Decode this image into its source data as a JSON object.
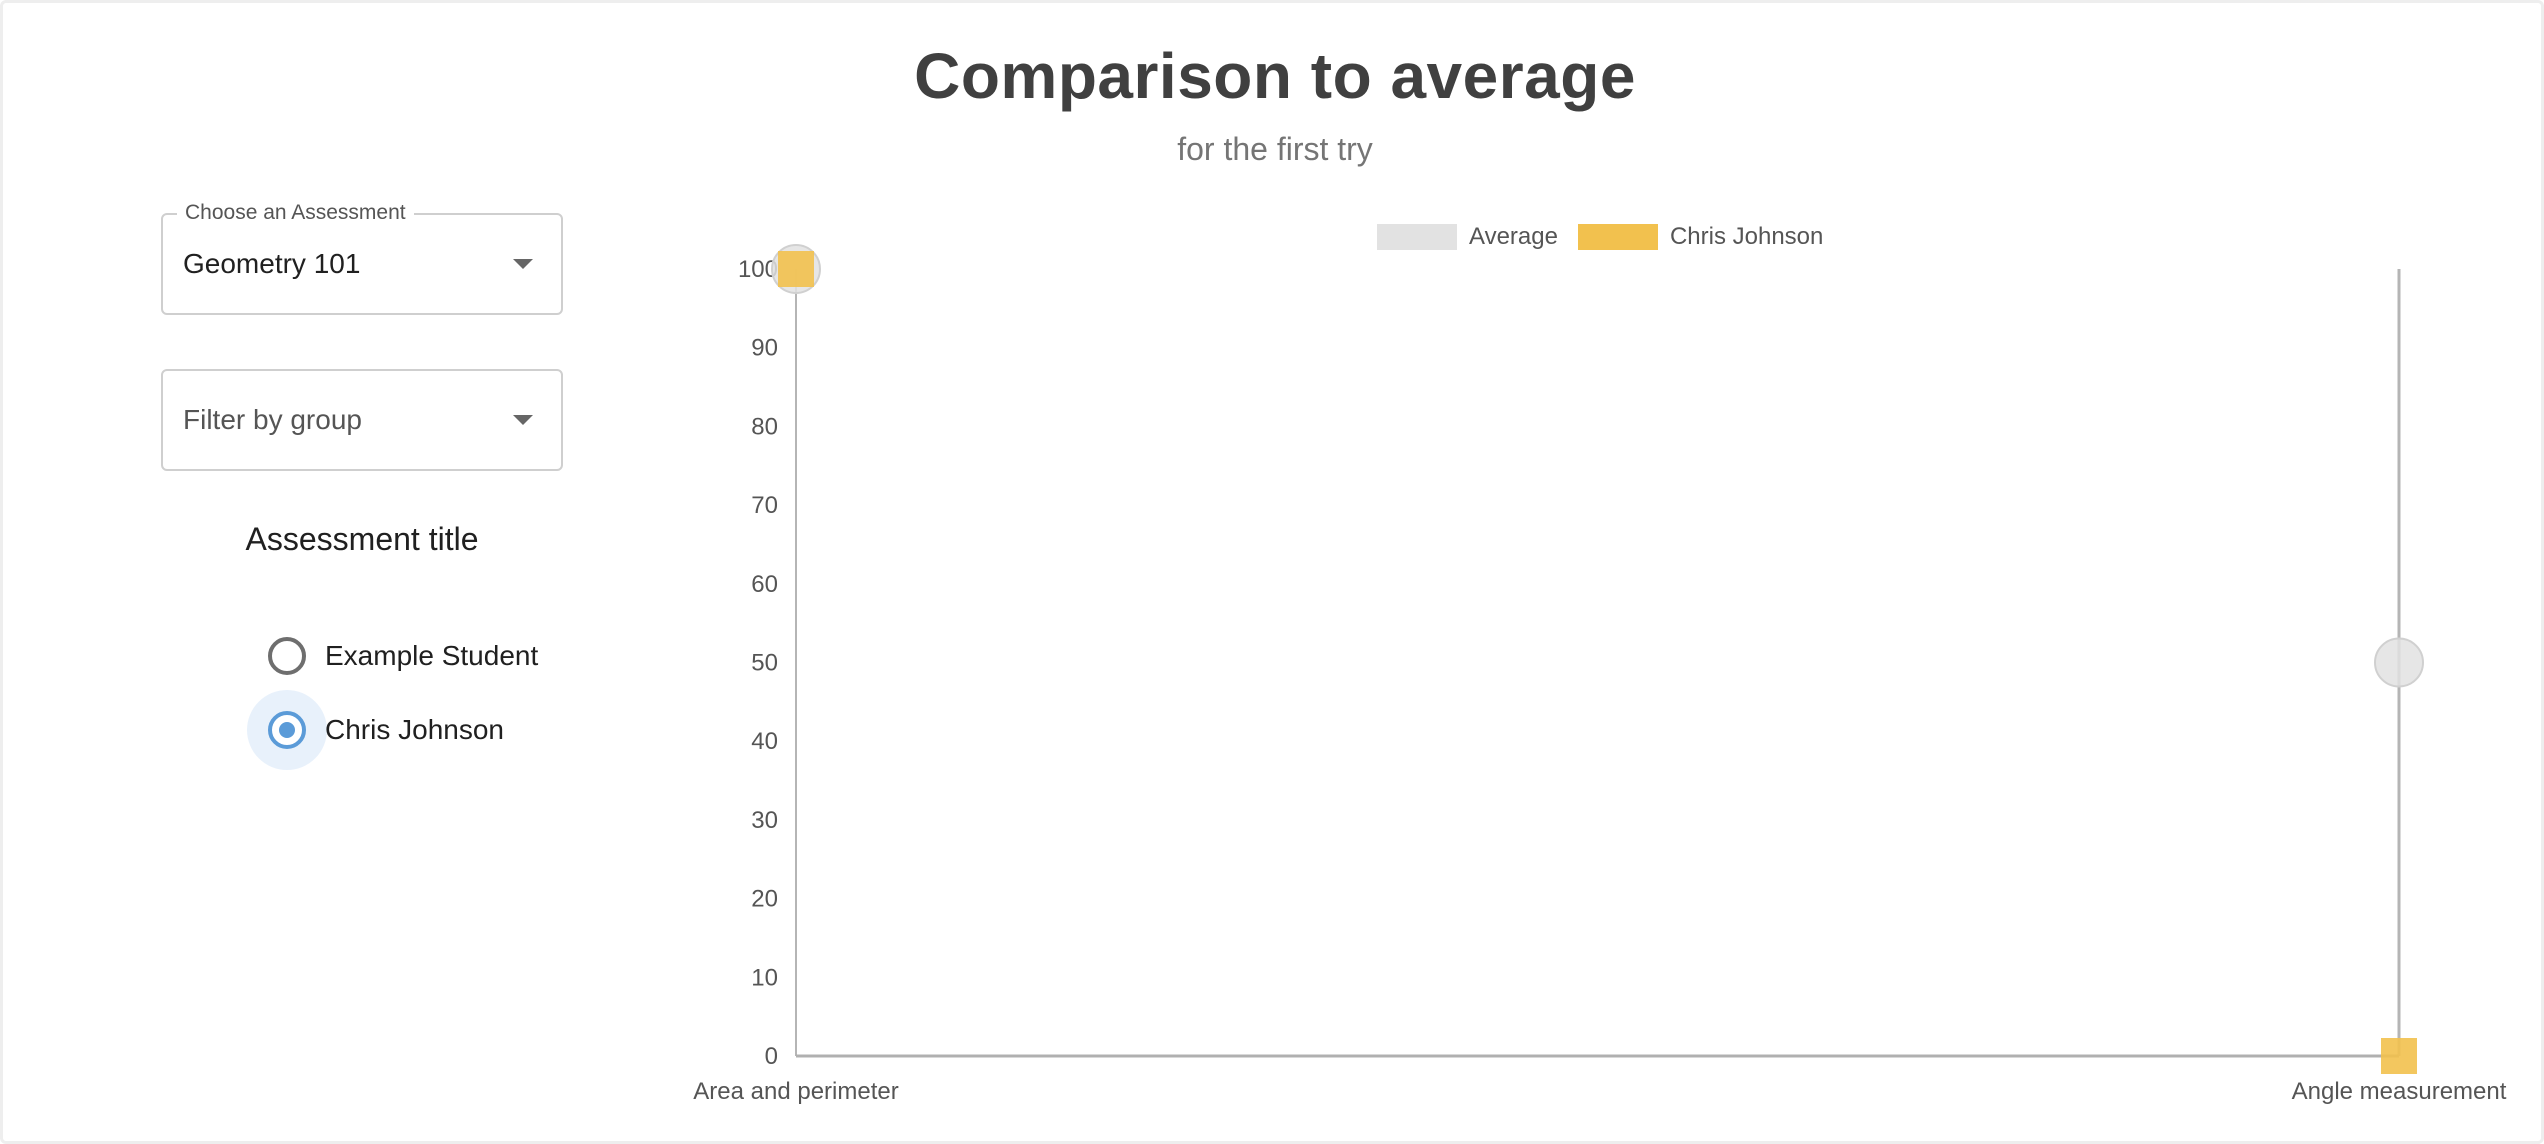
{
  "header": {
    "title": "Comparison to average",
    "subtitle": "for the first try"
  },
  "controls": {
    "assessment_select": {
      "label": "Choose an Assessment",
      "value": "Geometry 101"
    },
    "group_select": {
      "placeholder": "Filter by group"
    },
    "assessment_title": "Assessment title",
    "students": [
      {
        "label": "Example Student",
        "selected": false
      },
      {
        "label": "Chris Johnson",
        "selected": true
      }
    ],
    "selected_color": "#5b9bd8"
  },
  "chart_data": {
    "type": "line",
    "categories": [
      "Area and perimeter",
      "Angle measurement"
    ],
    "ylim": [
      0,
      100
    ],
    "yticks": [
      0,
      10,
      20,
      30,
      40,
      50,
      60,
      70,
      80,
      90,
      100
    ],
    "legend_position": "top-center",
    "grid": false,
    "series": [
      {
        "name": "Average",
        "values": [
          100,
          50
        ],
        "color": "#e2e2e2",
        "marker": "circle"
      },
      {
        "name": "Chris Johnson",
        "values": [
          100,
          0
        ],
        "color": "#f2c14e",
        "marker": "square"
      }
    ]
  }
}
